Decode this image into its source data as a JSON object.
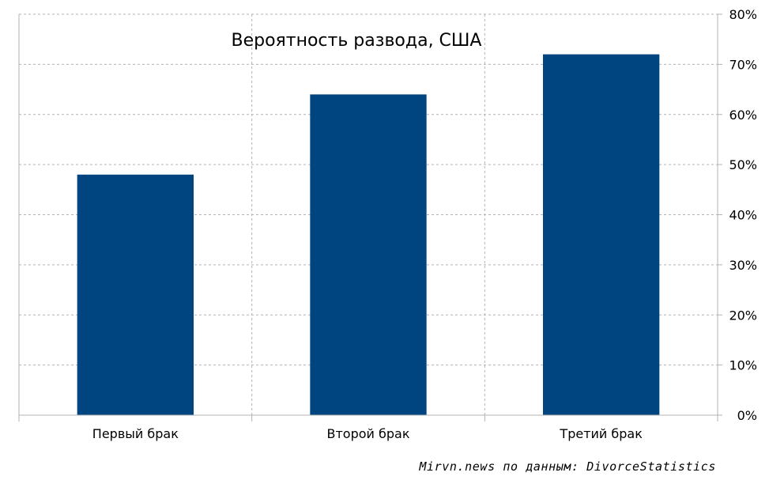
{
  "chart_data": {
    "type": "bar",
    "title": "Вероятность развода, США",
    "categories": [
      "Первый брак",
      "Второй брак",
      "Третий брак"
    ],
    "values": [
      48,
      64,
      72
    ],
    "y_ticks": [
      "0%",
      "10%",
      "20%",
      "30%",
      "40%",
      "50%",
      "60%",
      "70%",
      "80%"
    ],
    "ylim": [
      0,
      80
    ],
    "y_axis_side": "right",
    "grid": true,
    "bar_color": "#00457f",
    "grid_color": "#b3b3b3",
    "axis_color": "#b3b3b3"
  },
  "source": "Mirvn.news по данным: DivorceStatistics"
}
